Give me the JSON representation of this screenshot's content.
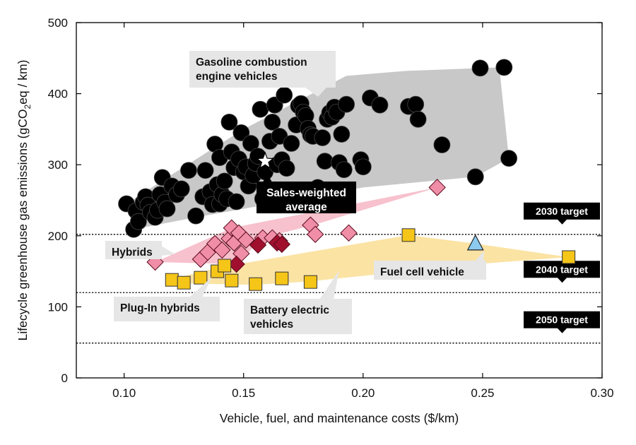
{
  "chart_data": {
    "type": "scatter",
    "xlabel": "Vehicle, fuel, and maintenance costs ($/km)",
    "ylabel": {
      "main": "Lifecycle greenhouse gas emissions (gCO",
      "sub": "2",
      "rest": "eq / km)"
    },
    "xlim": [
      0.08,
      0.3
    ],
    "ylim": [
      0,
      500
    ],
    "xticks": [
      "0.10",
      "0.15",
      "0.20",
      "0.25",
      "0.30"
    ],
    "yticks": [
      "0",
      "100",
      "200",
      "300",
      "400",
      "500"
    ],
    "grid": false,
    "targets": [
      {
        "label": "2030 target",
        "y": 202
      },
      {
        "label": "2040 target",
        "y": 120
      },
      {
        "label": "2050 target",
        "y": 49
      }
    ],
    "colors": {
      "gasoline": "#000000",
      "gasoline_region": "#c8c8c8",
      "hybrid": "#f08ea8",
      "hybrid_region": "#f7c1cd",
      "plugin_hybrid": "#a0102e",
      "battery_electric": "#f5c518",
      "bev_region": "#fbe3a4",
      "fuel_cell": "#8ccbee"
    },
    "annotations": [
      {
        "name": "gasoline",
        "lines": [
          "Gasoline combustion",
          "engine vehicles"
        ]
      },
      {
        "name": "sales-weighted",
        "lines": [
          "Sales-weighted",
          "average"
        ]
      },
      {
        "name": "hybrids",
        "lines": [
          "Hybrids"
        ]
      },
      {
        "name": "plugin",
        "lines": [
          "Plug-In hybrids"
        ]
      },
      {
        "name": "bev",
        "lines": [
          "Battery electric",
          "vehicles"
        ]
      },
      {
        "name": "fuelcell",
        "lines": [
          "Fuel cell vehicle"
        ]
      }
    ],
    "sales_weighted_average": {
      "x": 0.159,
      "y": 305
    },
    "series": [
      {
        "key": "gasoline",
        "marker": "circle",
        "points": [
          [
            0.101,
            245
          ],
          [
            0.104,
            209
          ],
          [
            0.105,
            235
          ],
          [
            0.106,
            220
          ],
          [
            0.108,
            247
          ],
          [
            0.109,
            255
          ],
          [
            0.11,
            243
          ],
          [
            0.111,
            233
          ],
          [
            0.113,
            226
          ],
          [
            0.114,
            236
          ],
          [
            0.115,
            258
          ],
          [
            0.116,
            282
          ],
          [
            0.117,
            247
          ],
          [
            0.118,
            238
          ],
          [
            0.12,
            270
          ],
          [
            0.122,
            258
          ],
          [
            0.124,
            266
          ],
          [
            0.127,
            292
          ],
          [
            0.13,
            228
          ],
          [
            0.133,
            255
          ],
          [
            0.134,
            292
          ],
          [
            0.136,
            262
          ],
          [
            0.137,
            244
          ],
          [
            0.138,
            329
          ],
          [
            0.139,
            272
          ],
          [
            0.14,
            245
          ],
          [
            0.14,
            310
          ],
          [
            0.141,
            258
          ],
          [
            0.142,
            277
          ],
          [
            0.143,
            252
          ],
          [
            0.144,
            360
          ],
          [
            0.145,
            318
          ],
          [
            0.146,
            296
          ],
          [
            0.147,
            248
          ],
          [
            0.148,
            308
          ],
          [
            0.149,
            345
          ],
          [
            0.15,
            290
          ],
          [
            0.151,
            297
          ],
          [
            0.152,
            270
          ],
          [
            0.153,
            330
          ],
          [
            0.154,
            285
          ],
          [
            0.155,
            302
          ],
          [
            0.156,
            312
          ],
          [
            0.157,
            378
          ],
          [
            0.158,
            252
          ],
          [
            0.159,
            290
          ],
          [
            0.16,
            257
          ],
          [
            0.161,
            333
          ],
          [
            0.162,
            360
          ],
          [
            0.163,
            384
          ],
          [
            0.164,
            300
          ],
          [
            0.165,
            340
          ],
          [
            0.166,
            307
          ],
          [
            0.167,
            398
          ],
          [
            0.168,
            295
          ],
          [
            0.17,
            330
          ],
          [
            0.172,
            356
          ],
          [
            0.173,
            383
          ],
          [
            0.174,
            386
          ],
          [
            0.175,
            374
          ],
          [
            0.176,
            369
          ],
          [
            0.177,
            351
          ],
          [
            0.178,
            342
          ],
          [
            0.179,
            340
          ],
          [
            0.181,
            268
          ],
          [
            0.183,
            338
          ],
          [
            0.184,
            305
          ],
          [
            0.185,
            364
          ],
          [
            0.186,
            373
          ],
          [
            0.187,
            367
          ],
          [
            0.188,
            381
          ],
          [
            0.189,
            374
          ],
          [
            0.19,
            303
          ],
          [
            0.191,
            343
          ],
          [
            0.192,
            293
          ],
          [
            0.193,
            385
          ],
          [
            0.199,
            307
          ],
          [
            0.2,
            297
          ],
          [
            0.203,
            394
          ],
          [
            0.207,
            384
          ],
          [
            0.219,
            382
          ],
          [
            0.222,
            385
          ],
          [
            0.223,
            364
          ],
          [
            0.233,
            328
          ],
          [
            0.247,
            283
          ],
          [
            0.249,
            436
          ],
          [
            0.259,
            437
          ],
          [
            0.261,
            309
          ]
        ]
      },
      {
        "key": "hybrid",
        "marker": "diamond",
        "points": [
          [
            0.113,
            163
          ],
          [
            0.132,
            167
          ],
          [
            0.135,
            177
          ],
          [
            0.138,
            189
          ],
          [
            0.141,
            180
          ],
          [
            0.144,
            196
          ],
          [
            0.145,
            211
          ],
          [
            0.146,
            190
          ],
          [
            0.148,
            204
          ],
          [
            0.149,
            175
          ],
          [
            0.151,
            194
          ],
          [
            0.158,
            197
          ],
          [
            0.162,
            197
          ],
          [
            0.165,
            193
          ],
          [
            0.178,
            215
          ],
          [
            0.18,
            202
          ],
          [
            0.194,
            204
          ],
          [
            0.231,
            268
          ]
        ]
      },
      {
        "key": "plugin_hybrid",
        "marker": "diamond",
        "points": [
          [
            0.147,
            160
          ],
          [
            0.156,
            187
          ],
          [
            0.164,
            190
          ],
          [
            0.166,
            188
          ]
        ]
      },
      {
        "key": "battery_electric",
        "marker": "square",
        "points": [
          [
            0.12,
            138
          ],
          [
            0.125,
            134
          ],
          [
            0.132,
            141
          ],
          [
            0.139,
            150
          ],
          [
            0.142,
            158
          ],
          [
            0.145,
            137
          ],
          [
            0.155,
            132
          ],
          [
            0.166,
            140
          ],
          [
            0.178,
            135
          ],
          [
            0.219,
            201
          ],
          [
            0.286,
            170
          ]
        ]
      },
      {
        "key": "fuel_cell",
        "marker": "triangle",
        "points": [
          [
            0.247,
            189
          ]
        ]
      }
    ]
  }
}
